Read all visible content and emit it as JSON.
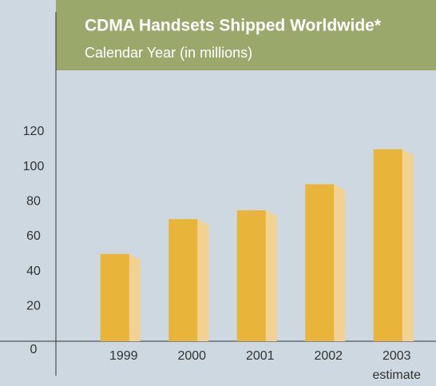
{
  "chart_data": {
    "type": "bar",
    "title": "CDMA Handsets Shipped Worldwide*",
    "subtitle": "Calendar Year (in millions)",
    "categories": [
      "1999",
      "2000",
      "2001",
      "2002",
      "2003"
    ],
    "category_notes": [
      null,
      null,
      null,
      null,
      "estimate"
    ],
    "values": [
      50,
      70,
      75,
      90,
      110
    ],
    "color": "#e8b43a",
    "side_color": "#f2d291",
    "ylim": [
      0,
      120
    ],
    "yticks": [
      0,
      20,
      40,
      60,
      80,
      100,
      120
    ],
    "grid": false
  }
}
